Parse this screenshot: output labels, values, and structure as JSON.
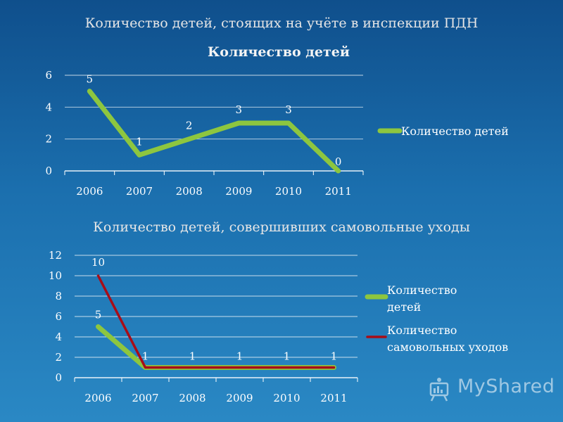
{
  "slide": {
    "title": "Количество детей, стоящих на учёте в инспекции ПДН",
    "subtitle": "Количество детей, совершивших самовольные уходы",
    "watermark": "MyShared"
  },
  "colors": {
    "green": "#8dc63f",
    "darkred": "#a80d18",
    "grid": "#ffffff",
    "text": "#ffffff"
  },
  "chart_data": [
    {
      "type": "line",
      "title": "Количество детей",
      "categories": [
        "2006",
        "2007",
        "2008",
        "2009",
        "2010",
        "2011"
      ],
      "ylim": [
        0,
        6
      ],
      "yticks": [
        0,
        2,
        4,
        6
      ],
      "grid": true,
      "legend": "right",
      "series": [
        {
          "name": "Количество детей",
          "values": [
            5,
            1,
            2,
            3,
            3,
            0
          ],
          "color": "#8dc63f"
        }
      ]
    },
    {
      "type": "line",
      "title": "",
      "categories": [
        "2006",
        "2007",
        "2008",
        "2009",
        "2010",
        "2011"
      ],
      "ylim": [
        0,
        12
      ],
      "yticks": [
        0,
        2,
        4,
        6,
        8,
        10,
        12
      ],
      "grid": true,
      "legend": "right",
      "series": [
        {
          "name": "Количество детей",
          "values": [
            5,
            1,
            1,
            1,
            1,
            1
          ],
          "color": "#8dc63f",
          "labels": [
            5,
            null,
            null,
            null,
            null,
            null
          ]
        },
        {
          "name": "Количество самовольных уходов",
          "values": [
            10,
            1,
            1,
            1,
            1,
            1
          ],
          "color": "#a80d18",
          "labels": [
            10,
            1,
            1,
            1,
            1,
            1
          ]
        }
      ]
    }
  ]
}
